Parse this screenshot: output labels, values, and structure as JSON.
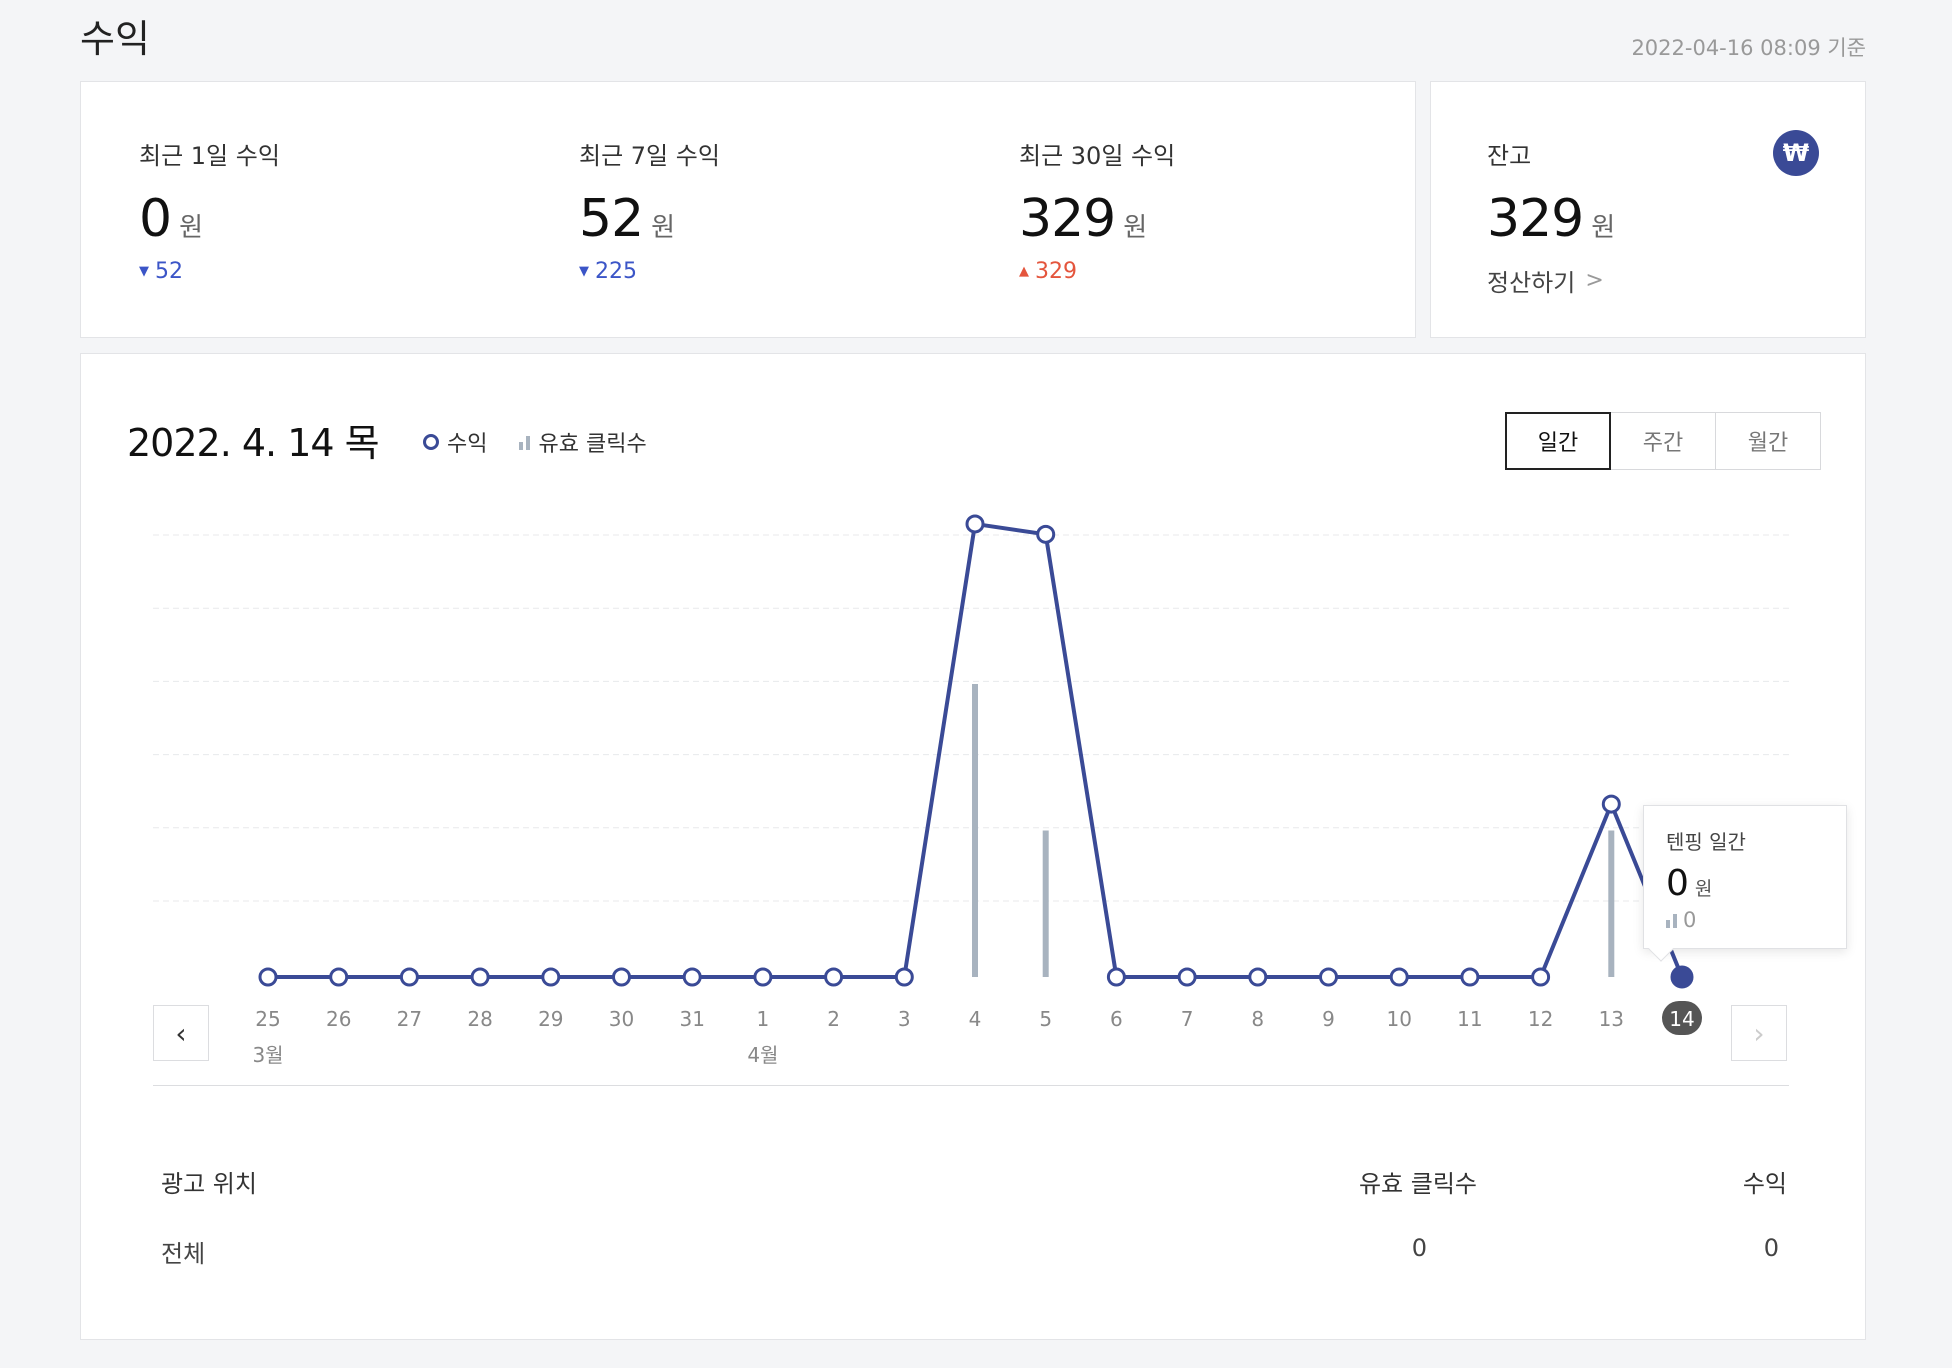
{
  "header": {
    "title": "수익",
    "timestamp": "2022-04-16 08:09 기준"
  },
  "summary": [
    {
      "label": "최근 1일 수익",
      "value": "0",
      "unit": "원",
      "delta": "52",
      "direction": "down"
    },
    {
      "label": "최근 7일 수익",
      "value": "52",
      "unit": "원",
      "delta": "225",
      "direction": "down"
    },
    {
      "label": "최근 30일 수익",
      "value": "329",
      "unit": "원",
      "delta": "329",
      "direction": "up"
    }
  ],
  "balance": {
    "label": "잔고",
    "value": "329",
    "unit": "원",
    "settle_label": "정산하기",
    "icon": "won-icon"
  },
  "chart_header": {
    "date": "2022. 4. 14 목",
    "legend_revenue": "수익",
    "legend_clicks": "유효 클릭수"
  },
  "period_tabs": [
    {
      "label": "일간",
      "active": true
    },
    {
      "label": "주간",
      "active": false
    },
    {
      "label": "월간",
      "active": false
    }
  ],
  "tooltip": {
    "title": "텐핑 일간",
    "value": "0",
    "unit": "원",
    "clicks": "0"
  },
  "chart_data": {
    "type": "line",
    "categories": [
      "25",
      "26",
      "27",
      "28",
      "29",
      "30",
      "31",
      "1",
      "2",
      "3",
      "4",
      "5",
      "6",
      "7",
      "8",
      "9",
      "10",
      "11",
      "12",
      "13",
      "14"
    ],
    "month_labels": [
      {
        "index": 0,
        "label": "3월"
      },
      {
        "index": 7,
        "label": "4월"
      }
    ],
    "selected_index": 20,
    "series": [
      {
        "name": "수익",
        "type": "line",
        "values": [
          0,
          0,
          0,
          0,
          0,
          0,
          0,
          0,
          0,
          0,
          131,
          128,
          0,
          0,
          0,
          0,
          0,
          0,
          0,
          50,
          0
        ]
      },
      {
        "name": "유효 클릭수",
        "type": "bar",
        "values": [
          0,
          0,
          0,
          0,
          0,
          0,
          0,
          0,
          0,
          0,
          2,
          1,
          0,
          0,
          0,
          0,
          0,
          0,
          0,
          1,
          0
        ]
      }
    ],
    "ylim": [
      0,
      144
    ],
    "grid": true,
    "colors": {
      "line": "#3a4a96",
      "bar": "#a8b3bf",
      "grid": "#e8e9eb"
    }
  },
  "table": {
    "headers": {
      "place": "광고 위치",
      "clicks": "유효 클릭수",
      "revenue": "수익"
    },
    "rows": [
      {
        "place": "전체",
        "clicks": "0",
        "revenue": "0"
      }
    ]
  }
}
